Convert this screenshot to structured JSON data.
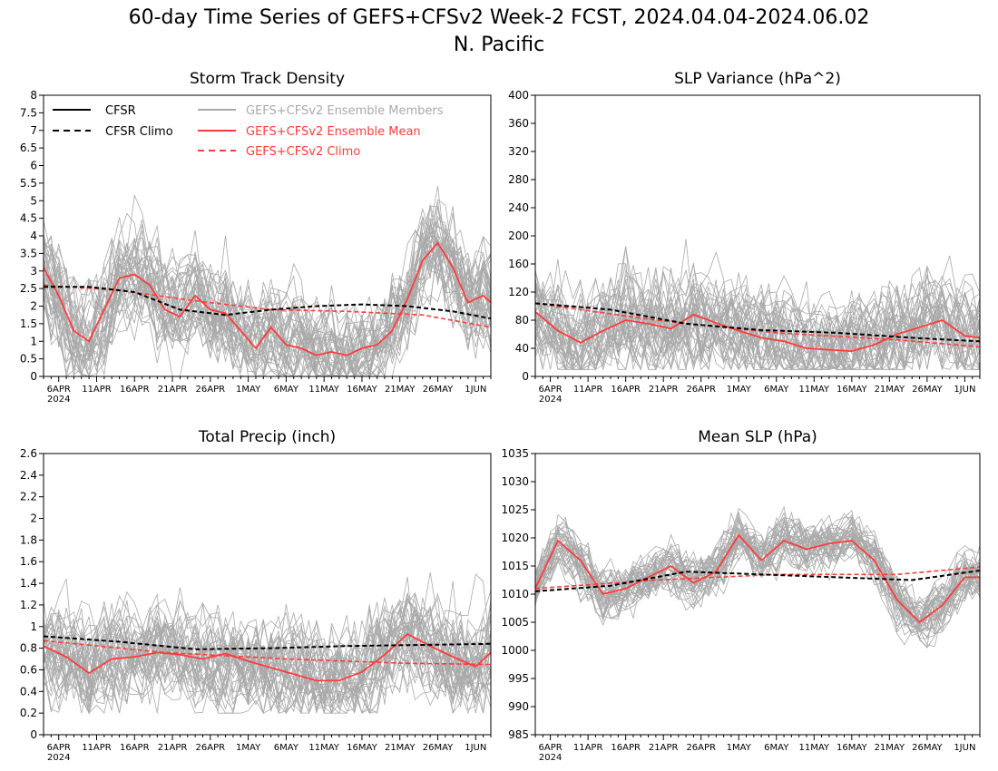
{
  "figure": {
    "title_line1": "60-day Time Series of GEFS+CFSv2 Week-2 FCST, 2024.04.04-2024.06.02",
    "title_line2": "N. Pacific"
  },
  "legend": {
    "cfsr": "CFSR",
    "cfsr_climo": "CFSR Climo",
    "members": "GEFS+CFSv2 Ensemble Members",
    "mean": "GEFS+CFSv2 Ensemble Mean",
    "climo": "GEFS+CFSv2 Climo"
  },
  "colors": {
    "cfsr": "#000000",
    "members": "#a9a9a9",
    "mean": "#ff3b3b",
    "climo": "#ff3b3b"
  },
  "x_axis": {
    "start": "2024-04-04",
    "end": "2024-06-02",
    "ticks": [
      {
        "day": 2,
        "label": "6APR"
      },
      {
        "day": 7,
        "label": "11APR"
      },
      {
        "day": 12,
        "label": "16APR"
      },
      {
        "day": 17,
        "label": "21APR"
      },
      {
        "day": 22,
        "label": "26APR"
      },
      {
        "day": 27,
        "label": "1MAY"
      },
      {
        "day": 32,
        "label": "6MAY"
      },
      {
        "day": 37,
        "label": "11MAY"
      },
      {
        "day": 42,
        "label": "16MAY"
      },
      {
        "day": 47,
        "label": "21MAY"
      },
      {
        "day": 52,
        "label": "26MAY"
      },
      {
        "day": 57,
        "label": "1JUN"
      }
    ],
    "year_label": "2024"
  },
  "chart_data": [
    {
      "type": "line",
      "title": "Storm Track Density",
      "ylim": [
        0,
        8
      ],
      "yticks": [
        "0",
        "0.5",
        "1",
        "1.5",
        "2",
        "2.5",
        "3",
        "3.5",
        "4",
        "4.5",
        "5",
        "5.5",
        "6",
        "6.5",
        "7",
        "7.5",
        "8"
      ],
      "ensemble_members": {
        "count": 40,
        "approx_range": [
          0,
          6.5
        ]
      },
      "series": [
        {
          "name": "GEFS+CFSv2 Ensemble Mean",
          "style": "mean",
          "x": [
            "2024-04-04",
            "2024-04-06",
            "2024-04-08",
            "2024-04-10",
            "2024-04-12",
            "2024-04-14",
            "2024-04-16",
            "2024-04-18",
            "2024-04-20",
            "2024-04-22",
            "2024-04-24",
            "2024-04-26",
            "2024-04-28",
            "2024-04-30",
            "2024-05-02",
            "2024-05-04",
            "2024-05-06",
            "2024-05-08",
            "2024-05-10",
            "2024-05-12",
            "2024-05-14",
            "2024-05-16",
            "2024-05-18",
            "2024-05-20",
            "2024-05-22",
            "2024-05-24",
            "2024-05-26",
            "2024-05-28",
            "2024-05-30",
            "2024-06-01",
            "2024-06-02"
          ],
          "y": [
            3.1,
            2.3,
            1.3,
            1.0,
            1.9,
            2.8,
            2.9,
            2.6,
            1.9,
            1.7,
            2.3,
            1.9,
            1.8,
            1.3,
            0.8,
            1.4,
            0.9,
            0.8,
            0.6,
            0.7,
            0.6,
            0.8,
            0.9,
            1.3,
            2.2,
            3.3,
            3.8,
            3.1,
            2.1,
            2.3,
            2.1
          ]
        },
        {
          "name": "GEFS+CFSv2 Climo",
          "style": "climo",
          "x": [
            "2024-04-04",
            "2024-04-14",
            "2024-04-24",
            "2024-05-04",
            "2024-05-14",
            "2024-05-24",
            "2024-06-02"
          ],
          "y": [
            2.6,
            2.45,
            2.15,
            1.9,
            1.85,
            1.75,
            1.4
          ]
        },
        {
          "name": "CFSR Climo",
          "style": "cfsr_climo",
          "x": [
            "2024-04-04",
            "2024-04-10",
            "2024-04-16",
            "2024-04-22",
            "2024-04-28",
            "2024-05-04",
            "2024-05-10",
            "2024-05-16",
            "2024-05-22",
            "2024-05-28",
            "2024-06-02"
          ],
          "y": [
            2.55,
            2.55,
            2.4,
            1.9,
            1.75,
            1.9,
            2.0,
            2.05,
            2.0,
            1.85,
            1.65
          ]
        }
      ]
    },
    {
      "type": "line",
      "title": "SLP Variance (hPa^2)",
      "ylim": [
        0,
        400
      ],
      "yticks": [
        "0",
        "40",
        "80",
        "120",
        "160",
        "200",
        "240",
        "280",
        "320",
        "360",
        "400"
      ],
      "ensemble_members": {
        "count": 40,
        "approx_range": [
          10,
          225
        ]
      },
      "series": [
        {
          "name": "GEFS+CFSv2 Ensemble Mean",
          "style": "mean",
          "x": [
            "2024-04-04",
            "2024-04-07",
            "2024-04-10",
            "2024-04-13",
            "2024-04-16",
            "2024-04-19",
            "2024-04-22",
            "2024-04-25",
            "2024-04-28",
            "2024-05-01",
            "2024-05-04",
            "2024-05-07",
            "2024-05-10",
            "2024-05-13",
            "2024-05-16",
            "2024-05-19",
            "2024-05-22",
            "2024-05-25",
            "2024-05-28",
            "2024-05-31",
            "2024-06-02"
          ],
          "y": [
            92,
            65,
            48,
            65,
            80,
            75,
            68,
            88,
            76,
            65,
            55,
            50,
            40,
            38,
            36,
            45,
            60,
            70,
            80,
            58,
            55
          ]
        },
        {
          "name": "GEFS+CFSv2 Climo",
          "style": "climo",
          "x": [
            "2024-04-04",
            "2024-04-20",
            "2024-05-06",
            "2024-05-22",
            "2024-06-02"
          ],
          "y": [
            104,
            80,
            62,
            52,
            42
          ]
        },
        {
          "name": "CFSR Climo",
          "style": "cfsr_climo",
          "x": [
            "2024-04-04",
            "2024-04-14",
            "2024-04-24",
            "2024-05-04",
            "2024-05-14",
            "2024-05-24",
            "2024-06-02"
          ],
          "y": [
            104,
            95,
            75,
            66,
            62,
            55,
            50
          ]
        }
      ]
    },
    {
      "type": "line",
      "title": "Total Precip (inch)",
      "ylim": [
        0,
        2.6
      ],
      "yticks": [
        "0",
        "0.2",
        "0.4",
        "0.6",
        "0.8",
        "1",
        "1.2",
        "1.4",
        "1.6",
        "1.8",
        "2",
        "2.2",
        "2.4",
        "2.6"
      ],
      "ensemble_members": {
        "count": 40,
        "approx_range": [
          0.2,
          1.5
        ]
      },
      "series": [
        {
          "name": "GEFS+CFSv2 Ensemble Mean",
          "style": "mean",
          "x": [
            "2024-04-04",
            "2024-04-07",
            "2024-04-10",
            "2024-04-13",
            "2024-04-16",
            "2024-04-19",
            "2024-04-22",
            "2024-04-25",
            "2024-04-28",
            "2024-05-01",
            "2024-05-04",
            "2024-05-07",
            "2024-05-10",
            "2024-05-13",
            "2024-05-16",
            "2024-05-19",
            "2024-05-22",
            "2024-05-25",
            "2024-05-28",
            "2024-05-31",
            "2024-06-02"
          ],
          "y": [
            0.82,
            0.72,
            0.57,
            0.7,
            0.72,
            0.76,
            0.74,
            0.7,
            0.75,
            0.68,
            0.62,
            0.56,
            0.5,
            0.5,
            0.58,
            0.74,
            0.93,
            0.82,
            0.72,
            0.63,
            0.76
          ]
        },
        {
          "name": "GEFS+CFSv2 Climo",
          "style": "climo",
          "x": [
            "2024-04-04",
            "2024-04-20",
            "2024-05-06",
            "2024-05-22",
            "2024-06-02"
          ],
          "y": [
            0.87,
            0.76,
            0.7,
            0.66,
            0.65
          ]
        },
        {
          "name": "CFSR Climo",
          "style": "cfsr_climo",
          "x": [
            "2024-04-04",
            "2024-04-14",
            "2024-04-24",
            "2024-05-04",
            "2024-05-14",
            "2024-05-24",
            "2024-06-02"
          ],
          "y": [
            0.91,
            0.86,
            0.79,
            0.8,
            0.82,
            0.83,
            0.84
          ]
        }
      ]
    },
    {
      "type": "line",
      "title": "Mean SLP (hPa)",
      "ylim": [
        985,
        1035
      ],
      "yticks": [
        "985",
        "990",
        "995",
        "1000",
        "1005",
        "1010",
        "1015",
        "1020",
        "1025",
        "1030",
        "1035"
      ],
      "ensemble_members": {
        "count": 40,
        "approx_range": [
          997,
          1030
        ]
      },
      "series": [
        {
          "name": "GEFS+CFSv2 Ensemble Mean",
          "style": "mean",
          "x": [
            "2024-04-04",
            "2024-04-07",
            "2024-04-10",
            "2024-04-13",
            "2024-04-16",
            "2024-04-19",
            "2024-04-22",
            "2024-04-25",
            "2024-04-28",
            "2024-05-01",
            "2024-05-04",
            "2024-05-07",
            "2024-05-10",
            "2024-05-13",
            "2024-05-16",
            "2024-05-19",
            "2024-05-22",
            "2024-05-25",
            "2024-05-28",
            "2024-05-31",
            "2024-06-02"
          ],
          "y": [
            1011,
            1019.5,
            1016,
            1010,
            1011,
            1013,
            1015,
            1012,
            1014,
            1020.5,
            1016,
            1019.5,
            1018,
            1019,
            1019.5,
            1016,
            1009,
            1005,
            1008,
            1013,
            1013
          ]
        },
        {
          "name": "GEFS+CFSv2 Climo",
          "style": "climo",
          "x": [
            "2024-04-04",
            "2024-04-20",
            "2024-05-06",
            "2024-05-22",
            "2024-06-02"
          ],
          "y": [
            1011,
            1012.5,
            1013.5,
            1013.5,
            1014.8
          ]
        },
        {
          "name": "CFSR Climo",
          "style": "cfsr_climo",
          "x": [
            "2024-04-04",
            "2024-04-14",
            "2024-04-24",
            "2024-05-04",
            "2024-05-14",
            "2024-05-24",
            "2024-06-02"
          ],
          "y": [
            1010.5,
            1011.5,
            1014,
            1013.5,
            1013,
            1012.5,
            1014.2
          ]
        }
      ]
    }
  ]
}
